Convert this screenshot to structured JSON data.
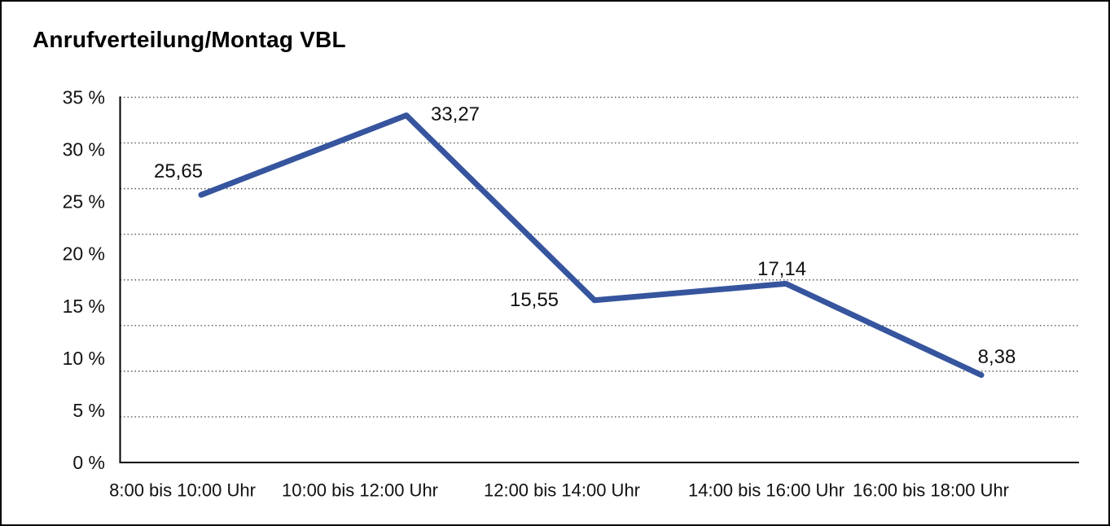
{
  "chart_data": {
    "type": "line",
    "title": "Anrufverteilung/Montag VBL",
    "categories": [
      "8:00 bis 10:00 Uhr",
      "10:00 bis 12:00 Uhr",
      "12:00 bis 14:00 Uhr",
      "14:00 bis 16:00 Uhr",
      "16:00 bis 18:00 Uhr"
    ],
    "values": [
      25.65,
      33.27,
      15.55,
      17.14,
      8.38
    ],
    "point_labels": [
      "25,65",
      "33,27",
      "15,55",
      "17,14",
      "8,38"
    ],
    "y_tick_labels": [
      "35 %",
      "30 %",
      "25 %",
      "20 %",
      "15 %",
      "10 %",
      "5 %",
      "0 %"
    ],
    "ylim": [
      0,
      35
    ],
    "xlabel": "",
    "ylabel": "",
    "grid": "horizontal-dotted",
    "legend_position": "none",
    "colors": {
      "line": "#36559E",
      "grid": "#5a5a5a",
      "axis": "#000000",
      "text": "#111111",
      "background": "#ffffff",
      "frame_border": "#000000"
    }
  }
}
